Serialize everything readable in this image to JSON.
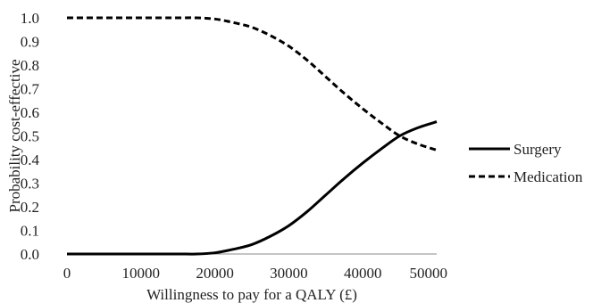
{
  "chart_data": {
    "type": "line",
    "title": "",
    "xlabel": "Willingness to pay for a QALY (£)",
    "ylabel": "Probability cost-effective",
    "xlim": [
      0,
      50000
    ],
    "ylim": [
      0,
      1.0
    ],
    "x_ticks": [
      0,
      10000,
      20000,
      30000,
      40000,
      50000
    ],
    "y_ticks": [
      0.0,
      0.1,
      0.2,
      0.3,
      0.4,
      0.5,
      0.6,
      0.7,
      0.8,
      0.9,
      1.0
    ],
    "x_tick_labels": [
      "0",
      "10000",
      "20000",
      "30000",
      "40000",
      "50000"
    ],
    "y_tick_labels": [
      "0.0",
      "0.1",
      "0.2",
      "0.3",
      "0.4",
      "0.5",
      "0.6",
      "0.7",
      "0.8",
      "0.9",
      "1.0"
    ],
    "grid": false,
    "legend_position": "right",
    "series": [
      {
        "name": "Surgery",
        "line_style": "solid",
        "color": "#000000",
        "x": [
          0,
          5000,
          10000,
          15000,
          17500,
          20000,
          22500,
          25000,
          27500,
          30000,
          32500,
          35000,
          37500,
          40000,
          42500,
          45000,
          47500,
          50000
        ],
        "y": [
          0.0,
          0.0,
          0.0,
          0.0,
          0.0,
          0.005,
          0.02,
          0.04,
          0.075,
          0.12,
          0.18,
          0.25,
          0.32,
          0.385,
          0.445,
          0.5,
          0.535,
          0.56
        ]
      },
      {
        "name": "Medication",
        "line_style": "dashed",
        "color": "#000000",
        "x": [
          0,
          5000,
          10000,
          15000,
          17500,
          20000,
          22500,
          25000,
          27500,
          30000,
          32500,
          35000,
          37500,
          40000,
          42500,
          45000,
          47500,
          50000
        ],
        "y": [
          1.0,
          1.0,
          1.0,
          1.0,
          1.0,
          0.995,
          0.98,
          0.96,
          0.925,
          0.88,
          0.82,
          0.75,
          0.68,
          0.615,
          0.555,
          0.5,
          0.465,
          0.44
        ]
      }
    ]
  }
}
